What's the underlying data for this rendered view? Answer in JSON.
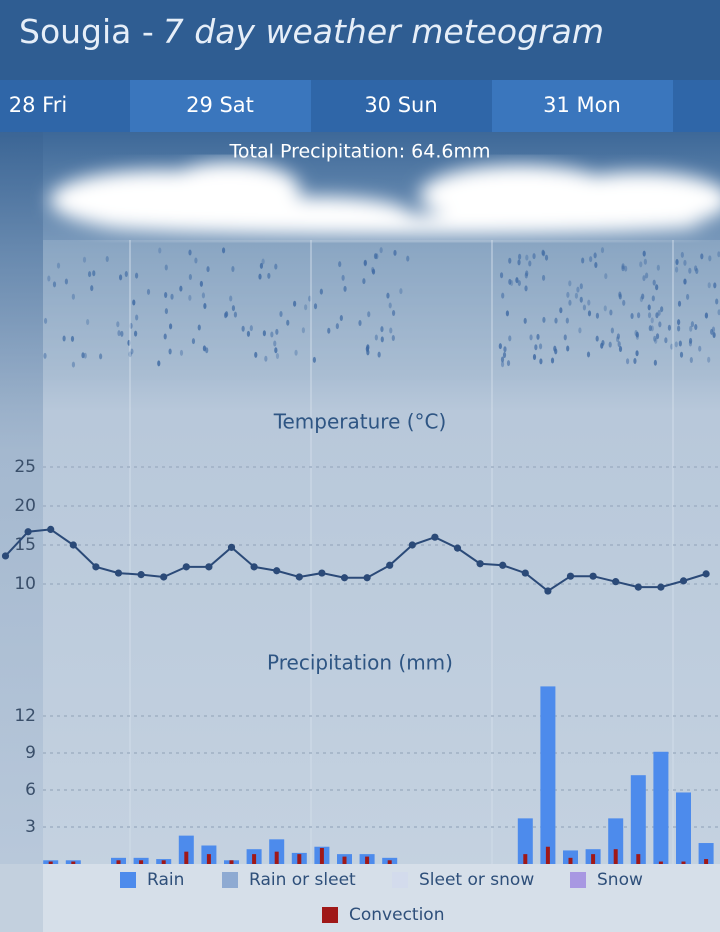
{
  "header": {
    "place": "Sougia -",
    "subtitle": "7 day weather meteogram"
  },
  "days": [
    "28 Fri",
    "29 Sat",
    "30 Sun",
    "31 Mon"
  ],
  "total_precipitation": "Total Precipitation: 64.6mm",
  "chart_data": [
    {
      "type": "line",
      "title": "Temperature (°C)",
      "categories": [
        null,
        null,
        null,
        null,
        null,
        null,
        null,
        null,
        null,
        null,
        null,
        null,
        null,
        null,
        null,
        null,
        null,
        null,
        null,
        null,
        null,
        null,
        null,
        null,
        null,
        null,
        null,
        null,
        null,
        null,
        null,
        null
      ],
      "series": [
        {
          "name": "Temperature",
          "color": "#2b4a78",
          "values": [
            13.6,
            16.7,
            17.0,
            15.0,
            12.2,
            11.4,
            11.2,
            10.9,
            12.2,
            12.2,
            14.7,
            12.2,
            11.7,
            10.9,
            11.4,
            10.8,
            10.8,
            12.4,
            15.0,
            16.0,
            14.6,
            12.6,
            12.4,
            11.4,
            9.1,
            11.0,
            11.0,
            10.3,
            9.6,
            9.6,
            10.4,
            11.3
          ]
        }
      ],
      "ylim": [
        5,
        30
      ],
      "yticks": [
        10,
        15,
        20,
        25
      ],
      "grid": true
    },
    {
      "type": "bar",
      "title": "Precipitation (mm)",
      "categories": [
        null,
        null,
        null,
        null,
        null,
        null,
        null,
        null,
        null,
        null,
        null,
        null,
        null,
        null,
        null,
        null,
        null,
        null,
        null,
        null,
        null,
        null,
        null,
        null,
        null,
        null,
        null,
        null,
        null,
        null,
        null,
        null
      ],
      "series": [
        {
          "name": "Rain",
          "color": "#4d8bec",
          "values": [
            0,
            0,
            0.3,
            0.3,
            0,
            0.5,
            0.5,
            0.4,
            2.3,
            1.5,
            0.3,
            1.2,
            2.0,
            0.9,
            1.4,
            0.8,
            0.8,
            0.5,
            0,
            0,
            0,
            0,
            0,
            3.7,
            14.4,
            1.1,
            1.2,
            3.7,
            7.2,
            9.1,
            5.8,
            1.7
          ]
        },
        {
          "name": "Rain or sleet",
          "color": "#8eaad2",
          "values": [
            0,
            0,
            0,
            0,
            0,
            0,
            0,
            0,
            0,
            0,
            0,
            0,
            0,
            0,
            0,
            0,
            0,
            0,
            0,
            0,
            0,
            0,
            0,
            0,
            0,
            0,
            0,
            0,
            0,
            0,
            0,
            0
          ]
        },
        {
          "name": "Sleet or snow",
          "color": "#d3dbec",
          "values": [
            0,
            0,
            0,
            0,
            0,
            0,
            0,
            0,
            0,
            0,
            0,
            0,
            0,
            0,
            0,
            0,
            0,
            0,
            0,
            0,
            0,
            0,
            0,
            0,
            0,
            0,
            0,
            0,
            0,
            0,
            0,
            0
          ]
        },
        {
          "name": "Snow",
          "color": "#a898e2",
          "values": [
            0,
            0,
            0,
            0,
            0,
            0,
            0,
            0,
            0,
            0,
            0,
            0,
            0,
            0,
            0,
            0,
            0,
            0,
            0,
            0,
            0,
            0,
            0,
            0,
            0,
            0,
            0,
            0,
            0,
            0,
            0,
            0
          ]
        },
        {
          "name": "Convection",
          "color": "#a01818",
          "values": [
            0,
            0,
            0.2,
            0.2,
            0,
            0.3,
            0.3,
            0.3,
            1.0,
            0.8,
            0.3,
            0.8,
            1.0,
            0.8,
            1.3,
            0.6,
            0.6,
            0.3,
            0,
            0,
            0,
            0,
            0,
            0.8,
            1.4,
            0.5,
            0.8,
            1.2,
            0.8,
            0.2,
            0.2,
            0.4
          ]
        }
      ],
      "ylim": [
        0,
        15
      ],
      "yticks": [
        3,
        6,
        9,
        12
      ],
      "grid": true
    }
  ]
}
